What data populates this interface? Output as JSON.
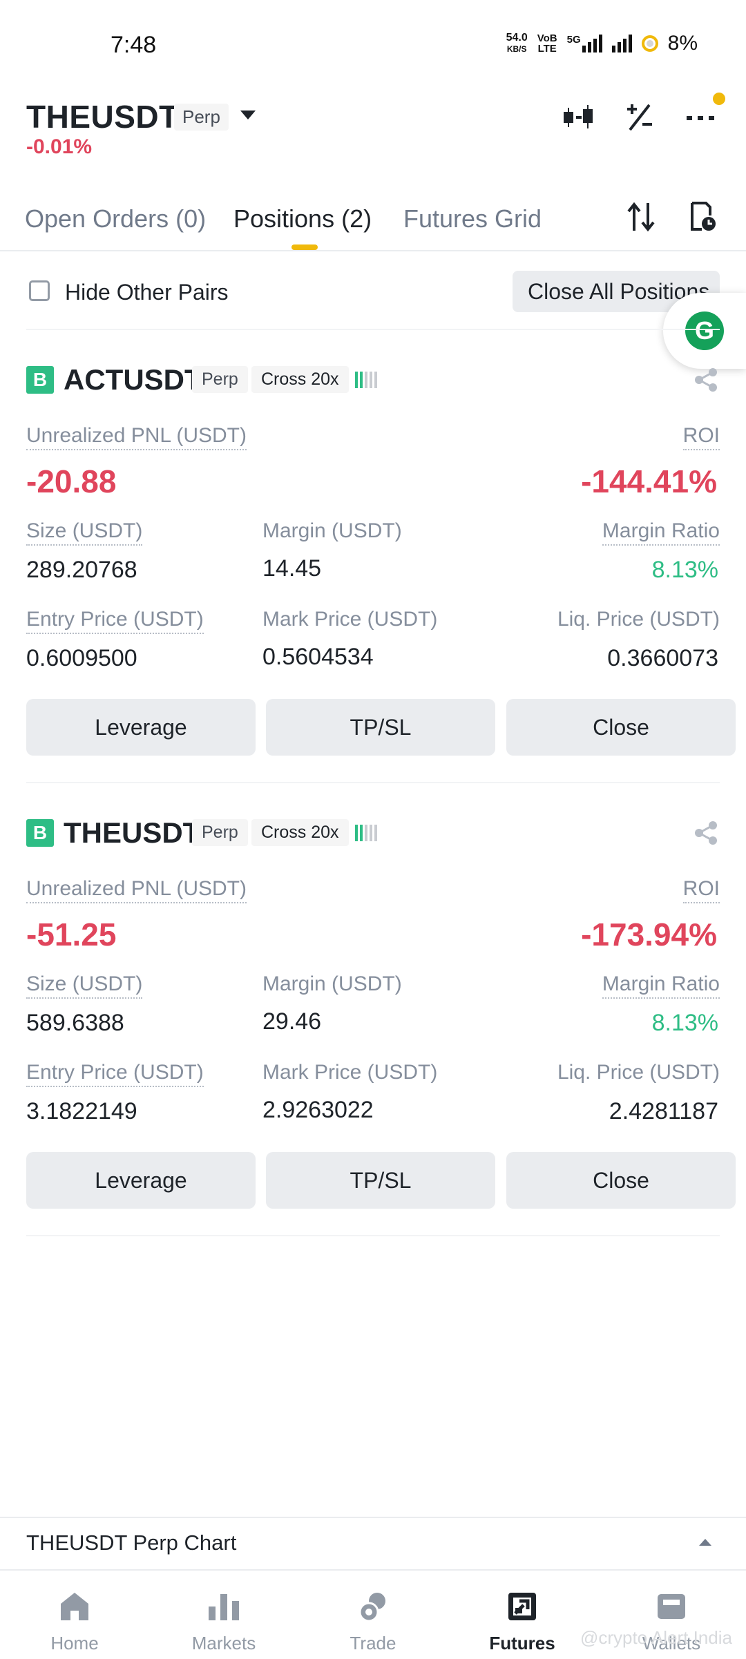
{
  "status_bar": {
    "time": "7:48",
    "net_speed": "54.0",
    "net_unit": "KB/S",
    "volte": "VoB",
    "lte": "LTE",
    "fiveg": "5G",
    "battery": "8%"
  },
  "header": {
    "symbol": "THEUSDT",
    "contract_type": "Perp",
    "change": "-0.01%"
  },
  "tabs": [
    {
      "label": "Open Orders (0)",
      "active": false
    },
    {
      "label": "Positions (2)",
      "active": true
    },
    {
      "label": "Futures Grid",
      "active": false
    }
  ],
  "filter": {
    "hide_other_pairs": "Hide Other Pairs",
    "close_all": "Close All Positions"
  },
  "floating_badge": "G",
  "positions": [
    {
      "side": "B",
      "symbol": "ACTUSDT",
      "contract": "Perp",
      "margin_mode": "Cross 20x",
      "risk_level": 1,
      "pnl_label": "Unrealized PNL (USDT)",
      "pnl": "-20.88",
      "roi_label": "ROI",
      "roi": "-144.41%",
      "size_label": "Size (USDT)",
      "size": "289.20768",
      "margin_label": "Margin (USDT)",
      "margin": "14.45",
      "margin_ratio_label": "Margin Ratio",
      "margin_ratio": "8.13%",
      "entry_label": "Entry Price (USDT)",
      "entry": "0.6009500",
      "mark_label": "Mark Price (USDT)",
      "mark": "0.5604534",
      "liq_label": "Liq. Price (USDT)",
      "liq": "0.3660073",
      "buttons": [
        "Leverage",
        "TP/SL",
        "Close"
      ]
    },
    {
      "side": "B",
      "symbol": "THEUSDT",
      "contract": "Perp",
      "margin_mode": "Cross 20x",
      "risk_level": 1,
      "pnl_label": "Unrealized PNL (USDT)",
      "pnl": "-51.25",
      "roi_label": "ROI",
      "roi": "-173.94%",
      "size_label": "Size (USDT)",
      "size": "589.6388",
      "margin_label": "Margin (USDT)",
      "margin": "29.46",
      "margin_ratio_label": "Margin Ratio",
      "margin_ratio": "8.13%",
      "entry_label": "Entry Price (USDT)",
      "entry": "3.1822149",
      "mark_label": "Mark Price (USDT)",
      "mark": "2.9263022",
      "liq_label": "Liq. Price (USDT)",
      "liq": "2.4281187",
      "buttons": [
        "Leverage",
        "TP/SL",
        "Close"
      ]
    }
  ],
  "chart_bar": {
    "label": "THEUSDT Perp Chart"
  },
  "bottom_nav": [
    {
      "label": "Home",
      "icon": "home-icon",
      "active": false
    },
    {
      "label": "Markets",
      "icon": "markets-icon",
      "active": false
    },
    {
      "label": "Trade",
      "icon": "trade-icon",
      "active": false
    },
    {
      "label": "Futures",
      "icon": "futures-icon",
      "active": true
    },
    {
      "label": "Wallets",
      "icon": "wallet-icon",
      "active": false
    }
  ],
  "watermark": "@crypto Alert India",
  "colors": {
    "accent": "#f0b90b",
    "negative": "#e0455c",
    "positive": "#2ebd85"
  }
}
